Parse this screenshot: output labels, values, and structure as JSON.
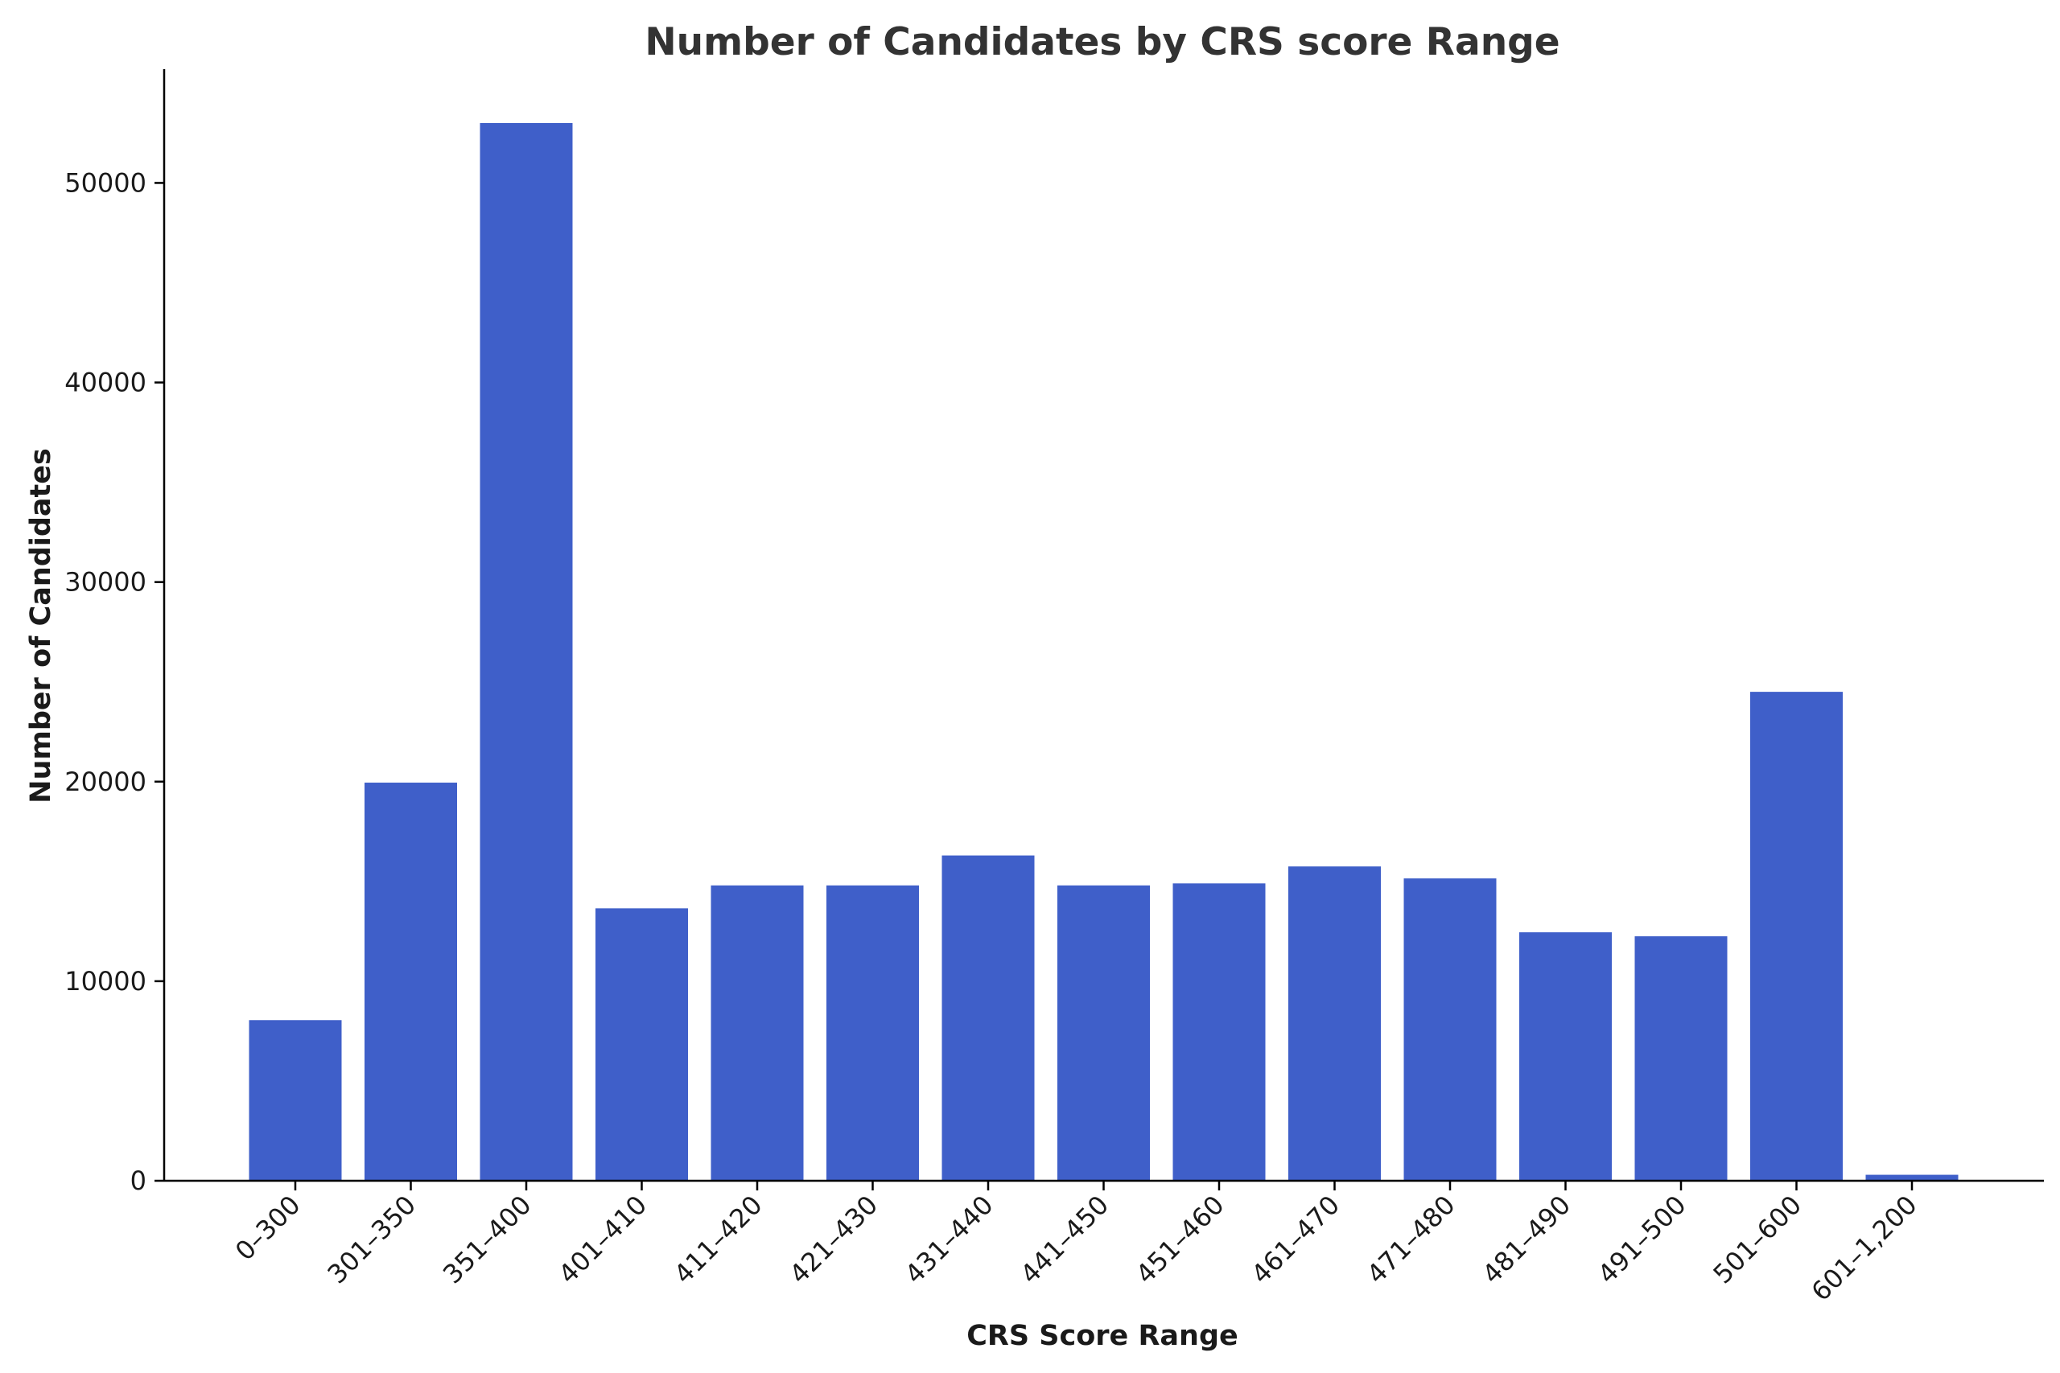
{
  "chart_data": {
    "type": "bar",
    "title": "Number of Candidates by CRS score Range",
    "xlabel": "CRS Score Range",
    "ylabel": "Number of Candidates",
    "categories": [
      "0–300",
      "301–350",
      "351–400",
      "401–410",
      "411–420",
      "421–430",
      "431–440",
      "441–450",
      "451–460",
      "461–470",
      "471–480",
      "481–490",
      "491–500",
      "501–600",
      "601–1,200"
    ],
    "values": [
      8050,
      19950,
      53000,
      13650,
      14800,
      14800,
      16300,
      14800,
      14900,
      15750,
      15150,
      12450,
      12250,
      24500,
      300
    ],
    "ylim": [
      0,
      55700
    ],
    "yticks": [
      0,
      10000,
      20000,
      30000,
      40000,
      50000
    ],
    "bar_color": "#3f5fc9",
    "grid": false,
    "legend": "none"
  }
}
